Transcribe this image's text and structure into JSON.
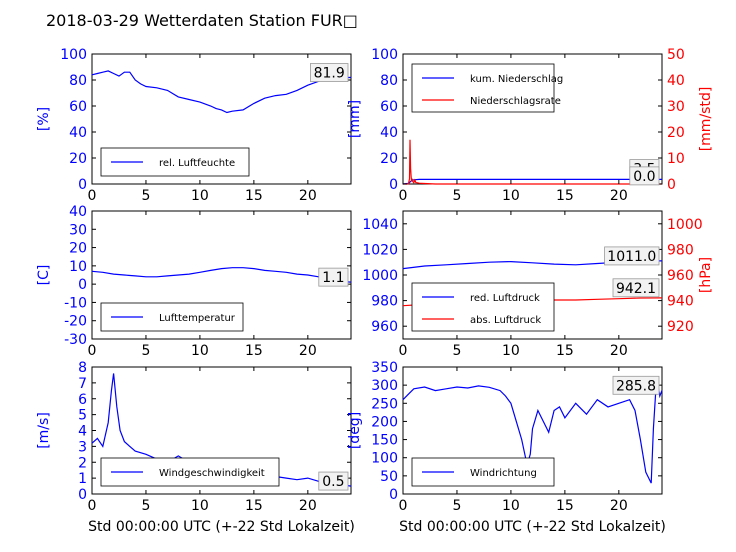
{
  "figure": {
    "title": "2018-03-29 Wetterdaten Station FUR□"
  },
  "colors": {
    "primary": "#0000ff",
    "secondary": "#ff0000",
    "wind_light": "#7777ff",
    "axis": "#000000"
  },
  "chart_data": [
    {
      "id": "humidity",
      "type": "line",
      "xlim": [
        0,
        24
      ],
      "ylim": [
        0,
        100
      ],
      "xticks": [
        0,
        5,
        10,
        15,
        20
      ],
      "yticks": [
        0,
        20,
        40,
        60,
        80,
        100
      ],
      "ylabel": "[%]",
      "annotation": "81.9",
      "legend": {
        "placement": "lower-left",
        "entries": [
          {
            "label": "rel. Luftfeuchte",
            "color": "#0000ff"
          }
        ]
      },
      "series": [
        {
          "name": "rel. Luftfeuchte",
          "color": "#0000ff",
          "x": [
            0,
            0.5,
            1,
            1.5,
            2,
            2.5,
            3,
            3.5,
            4,
            4.5,
            5,
            6,
            7,
            8,
            9,
            10,
            11,
            11.5,
            12,
            12.5,
            13,
            14,
            15,
            16,
            17,
            18,
            19,
            20,
            21,
            22,
            23,
            24
          ],
          "y": [
            84,
            85,
            86,
            87,
            85,
            83,
            86,
            86,
            80,
            77,
            75,
            74,
            72,
            67,
            65,
            63,
            60,
            58,
            57,
            55,
            56,
            57,
            62,
            66,
            68,
            69,
            72,
            76,
            79,
            81,
            82,
            81.9
          ]
        }
      ]
    },
    {
      "id": "precipitation",
      "type": "line",
      "xlim": [
        0,
        24
      ],
      "ylim": [
        0,
        100
      ],
      "ylim_right": [
        0,
        50
      ],
      "xticks": [
        0,
        5,
        10,
        15,
        20
      ],
      "yticks": [
        0,
        20,
        40,
        60,
        80,
        100
      ],
      "yticks_right": [
        0,
        10,
        20,
        30,
        40,
        50
      ],
      "ylabel": "[mm]",
      "ylabel_right": "[mm/std]",
      "annotation": "3.5",
      "annotation_right": "0.0",
      "legend": {
        "placement": "upper-left",
        "entries": [
          {
            "label": "kum. Niederschlag",
            "color": "#0000ff"
          },
          {
            "label": "Niederschlagsrate",
            "color": "#ff0000"
          }
        ]
      },
      "series": [
        {
          "name": "kum. Niederschlag",
          "color": "#0000ff",
          "axis": "left",
          "x": [
            0,
            0.5,
            0.8,
            1.0,
            1.5,
            2,
            24
          ],
          "y": [
            0,
            0.5,
            2.5,
            3.2,
            3.5,
            3.5,
            3.5
          ]
        },
        {
          "name": "Niederschlagsrate",
          "color": "#ff0000",
          "axis": "right",
          "x": [
            0,
            0.5,
            0.6,
            0.65,
            0.7,
            0.75,
            0.8,
            0.85,
            0.9,
            1.0,
            1.1,
            1.2,
            1.3,
            1.5,
            2,
            3,
            24
          ],
          "y": [
            0,
            0,
            2,
            17,
            6,
            3,
            1,
            2,
            1,
            0.5,
            1.5,
            0.5,
            0.5,
            0.3,
            0.2,
            0,
            0
          ]
        }
      ]
    },
    {
      "id": "temperature",
      "type": "line",
      "xlim": [
        0,
        24
      ],
      "ylim": [
        -30,
        40
      ],
      "xticks": [
        0,
        5,
        10,
        15,
        20
      ],
      "yticks": [
        -30,
        -20,
        -10,
        0,
        10,
        20,
        30,
        40
      ],
      "ylabel": "[C]",
      "annotation": "1.1",
      "legend": {
        "placement": "lower-left",
        "entries": [
          {
            "label": "Lufttemperatur",
            "color": "#0000ff"
          }
        ]
      },
      "series": [
        {
          "name": "Lufttemperatur",
          "color": "#0000ff",
          "x": [
            0,
            1,
            2,
            3,
            4,
            5,
            6,
            7,
            8,
            9,
            10,
            11,
            12,
            13,
            14,
            15,
            16,
            17,
            18,
            19,
            20,
            21,
            22,
            23,
            24
          ],
          "y": [
            7,
            6.5,
            5.5,
            5,
            4.5,
            4,
            4,
            4.5,
            5,
            5.5,
            6.5,
            7.5,
            8.5,
            9,
            9,
            8.5,
            7.5,
            7,
            6.5,
            5.5,
            5,
            4,
            3,
            1.5,
            1.1
          ]
        }
      ]
    },
    {
      "id": "pressure",
      "type": "line",
      "xlim": [
        0,
        24
      ],
      "ylim": [
        950,
        1050
      ],
      "ylim_right": [
        910,
        1010
      ],
      "xticks": [
        0,
        5,
        10,
        15,
        20
      ],
      "yticks": [
        960,
        980,
        1000,
        1020,
        1040
      ],
      "yticks_right": [
        920,
        940,
        960,
        980,
        1000
      ],
      "ylabel_right": "[hPa]",
      "annotation": "1011.0",
      "annotation_right": "942.1",
      "legend": {
        "placement": "lower-left",
        "entries": [
          {
            "label": "red. Luftdruck",
            "color": "#0000ff"
          },
          {
            "label": "abs. Luftdruck",
            "color": "#ff0000"
          }
        ]
      },
      "series": [
        {
          "name": "red. Luftdruck",
          "color": "#0000ff",
          "axis": "left",
          "x": [
            0,
            2,
            4,
            6,
            8,
            10,
            12,
            14,
            16,
            18,
            20,
            22,
            24
          ],
          "y": [
            1005,
            1007,
            1008,
            1009,
            1010,
            1010.5,
            1009.5,
            1008.5,
            1008,
            1009,
            1010,
            1011,
            1011
          ]
        },
        {
          "name": "abs. Luftdruck",
          "color": "#ff0000",
          "axis": "right",
          "x": [
            0,
            2,
            4,
            6,
            8,
            10,
            12,
            14,
            16,
            18,
            20,
            22,
            24
          ],
          "y": [
            936,
            937,
            938,
            939.5,
            940,
            941,
            941,
            940.5,
            940.5,
            941,
            941.5,
            942,
            942.1
          ]
        }
      ]
    },
    {
      "id": "windspeed",
      "type": "line",
      "xlim": [
        0,
        24
      ],
      "ylim": [
        0,
        8
      ],
      "xticks": [
        0,
        5,
        10,
        15,
        20
      ],
      "yticks": [
        0,
        1,
        2,
        3,
        4,
        5,
        6,
        7,
        8
      ],
      "ylabel": "[m/s]",
      "xlabel": "Std 00:00:00 UTC (+-22 Std Lokalzeit)",
      "annotation": "0.5",
      "legend": {
        "placement": "lower-left",
        "entries": [
          {
            "label": "Windgeschwindigkeit",
            "color": "#0000ff"
          }
        ]
      },
      "series": [
        {
          "name": "Windgeschwindigkeit",
          "color": "#0000ff",
          "x": [
            0,
            0.5,
            1,
            1.5,
            1.8,
            2,
            2.3,
            2.6,
            3,
            3.5,
            4,
            5,
            6,
            7,
            8,
            9,
            10,
            11,
            12,
            13,
            14,
            15,
            16,
            17,
            18,
            19,
            20,
            21,
            22,
            23,
            24
          ],
          "y": [
            3.2,
            3.5,
            3.0,
            4.5,
            6.5,
            7.6,
            5.5,
            4.0,
            3.3,
            3.0,
            2.7,
            2.5,
            2.2,
            2.0,
            2.4,
            2.0,
            1.8,
            1.5,
            1.4,
            1.5,
            1.6,
            1.3,
            1.2,
            1.1,
            1.0,
            0.9,
            1.0,
            0.8,
            0.7,
            0.6,
            0.5
          ]
        }
      ]
    },
    {
      "id": "winddirection",
      "type": "line",
      "xlim": [
        0,
        24
      ],
      "ylim": [
        0,
        350
      ],
      "xticks": [
        0,
        5,
        10,
        15,
        20
      ],
      "yticks": [
        0,
        50,
        100,
        150,
        200,
        250,
        300,
        350
      ],
      "ylabel": "[deg]",
      "xlabel": "Std 00:00:00 UTC (+-22 Std Lokalzeit)",
      "annotation": "285.8",
      "legend": {
        "placement": "lower-left",
        "entries": [
          {
            "label": "Windrichtung",
            "color": "#0000ff"
          }
        ]
      },
      "series": [
        {
          "name": "Windrichtung",
          "color": "#0000ff",
          "x": [
            0,
            0.5,
            1,
            2,
            3,
            4,
            5,
            6,
            7,
            8,
            9,
            9.5,
            10,
            10.5,
            11,
            11.5,
            11.8,
            12,
            12.5,
            13,
            13.5,
            14,
            14.5,
            15,
            16,
            17,
            18,
            19,
            20,
            21,
            21.5,
            22,
            22.5,
            23,
            23.2,
            23.5,
            23.8,
            24
          ],
          "y": [
            260,
            275,
            290,
            295,
            285,
            290,
            295,
            292,
            298,
            294,
            285,
            270,
            250,
            200,
            150,
            80,
            110,
            180,
            230,
            200,
            170,
            230,
            240,
            210,
            250,
            220,
            260,
            240,
            250,
            260,
            230,
            150,
            60,
            30,
            180,
            320,
            270,
            285.8
          ]
        }
      ]
    }
  ]
}
